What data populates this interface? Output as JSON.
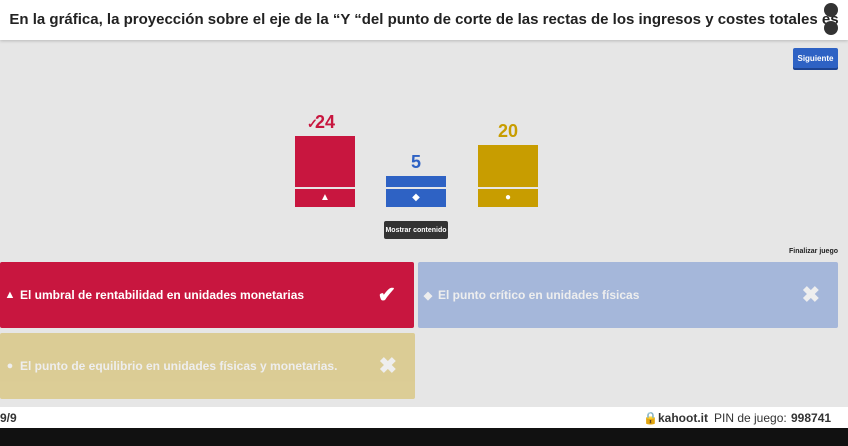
{
  "question": "En la gráfica, la proyección sobre el eje de la “Y “del punto de corte de las rectas de los ingresos y costes totales es",
  "next_button": "Siguiente",
  "results": [
    {
      "count": 24,
      "color": "#c8163f",
      "correct": true
    },
    {
      "count": 5,
      "color": "#2e62c4",
      "correct": false
    },
    {
      "count": 20,
      "color": "#c89d00",
      "correct": false
    }
  ],
  "show_content_button": "Mostrar contenido",
  "end_game": "Finalizar juego",
  "answers": [
    {
      "text": "El umbral de rentabilidad en unidades monetarias"
    },
    {
      "text": "El punto crítico en unidades físicas"
    },
    {
      "text": "El punto de equilibrio en unidades físicas y monetarias."
    }
  ],
  "footer": {
    "progress": "9/9",
    "site": "kahoot.it",
    "pin_label": "PIN de juego:",
    "pin": "998741"
  }
}
